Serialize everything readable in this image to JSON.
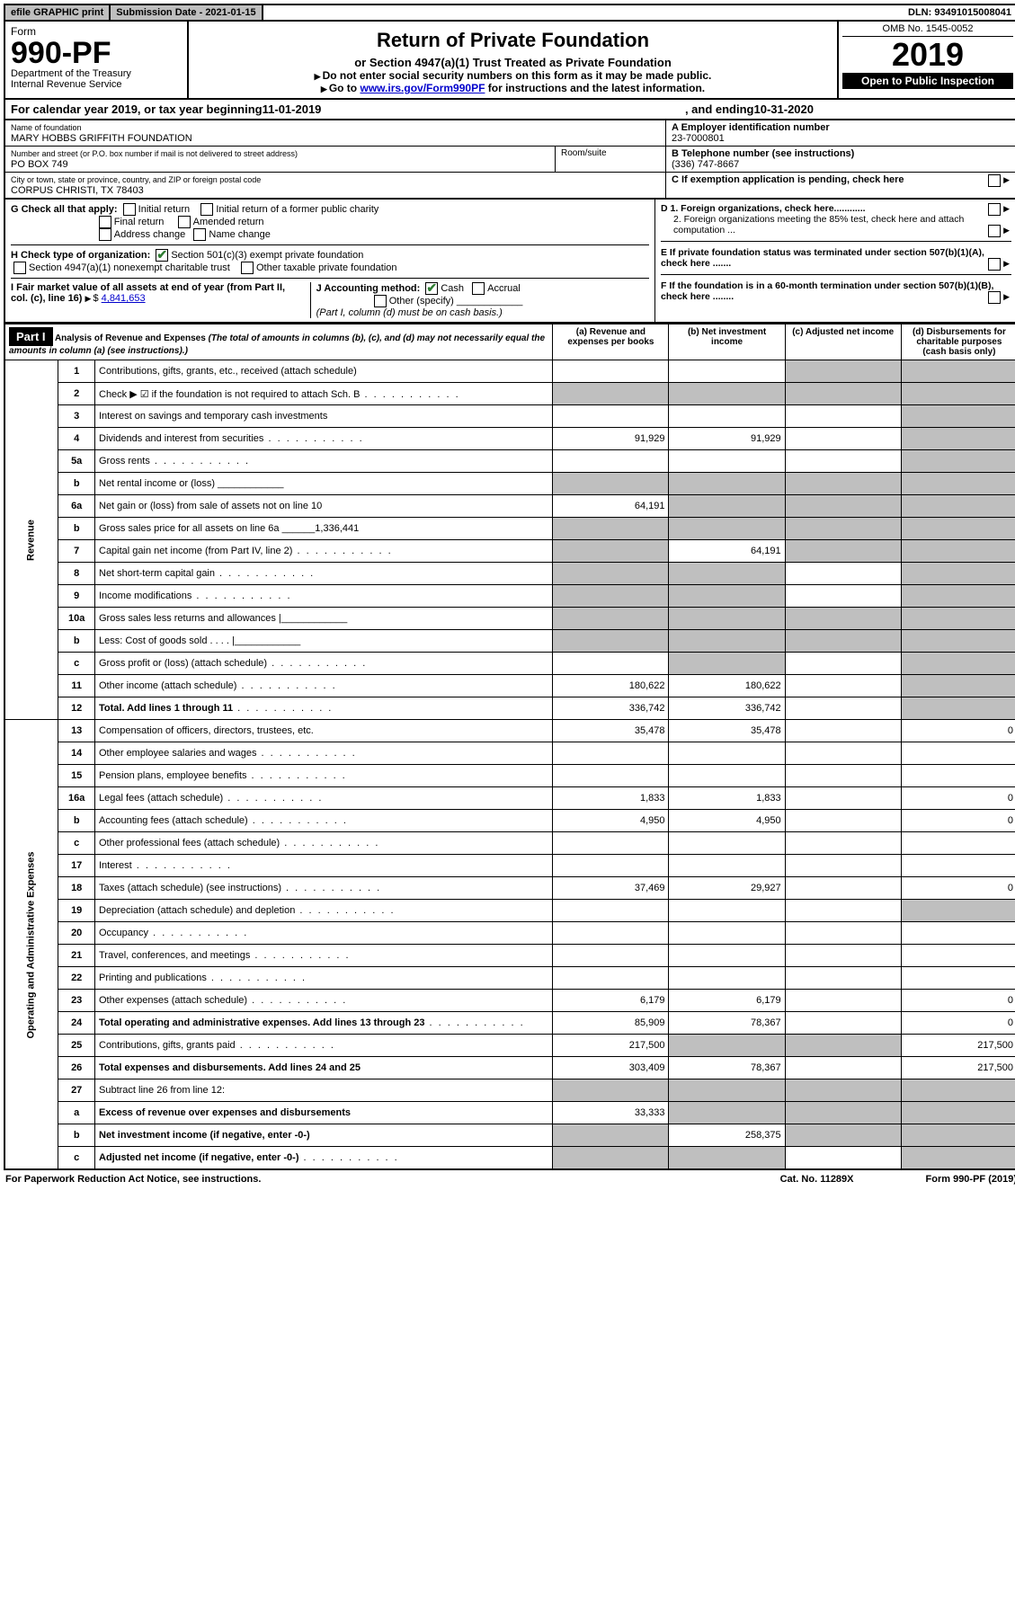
{
  "topbar": {
    "efile": "efile GRAPHIC print",
    "submission": "Submission Date - 2021-01-15",
    "dln": "DLN: 93491015008041"
  },
  "header": {
    "form_label": "Form",
    "form_number": "990-PF",
    "department": "Department of the Treasury",
    "irs": "Internal Revenue Service",
    "title": "Return of Private Foundation",
    "subtitle": "or Section 4947(a)(1) Trust Treated as Private Foundation",
    "instr1": "Do not enter social security numbers on this form as it may be made public.",
    "instr2_prefix": "Go to ",
    "instr2_link": "www.irs.gov/Form990PF",
    "instr2_suffix": " for instructions and the latest information.",
    "omb": "OMB No. 1545-0052",
    "year": "2019",
    "inspection": "Open to Public Inspection"
  },
  "calendar": {
    "prefix": "For calendar year 2019, or tax year beginning ",
    "begin": "11-01-2019",
    "mid": ", and ending ",
    "end": "10-31-2020"
  },
  "id": {
    "name_label": "Name of foundation",
    "name": "MARY HOBBS GRIFFITH FOUNDATION",
    "addr_label": "Number and street (or P.O. box number if mail is not delivered to street address)",
    "addr": "PO BOX 749",
    "room_label": "Room/suite",
    "city_label": "City or town, state or province, country, and ZIP or foreign postal code",
    "city": "CORPUS CHRISTI, TX  78403",
    "a_label": "A Employer identification number",
    "ein": "23-7000801",
    "b_label": "B Telephone number (see instructions)",
    "phone": "(336) 747-8667",
    "c_label": "C  If exemption application is pending, check here"
  },
  "checks": {
    "g_label": "G Check all that apply:",
    "g1": "Initial return",
    "g2": "Initial return of a former public charity",
    "g3": "Final return",
    "g4": "Amended return",
    "g5": "Address change",
    "g6": "Name change",
    "h_label": "H Check type of organization:",
    "h1": "Section 501(c)(3) exempt private foundation",
    "h2": "Section 4947(a)(1) nonexempt charitable trust",
    "h3": "Other taxable private foundation",
    "i_label": "I Fair market value of all assets at end of year (from Part II, col. (c), line 16)",
    "i_value": "4,841,653",
    "j_label": "J Accounting method:",
    "j1": "Cash",
    "j2": "Accrual",
    "j3": "Other (specify)",
    "j_note": "(Part I, column (d) must be on cash basis.)",
    "d1": "D 1. Foreign organizations, check here............",
    "d2": "2. Foreign organizations meeting the 85% test, check here and attach computation ...",
    "e": "E  If private foundation status was terminated under section 507(b)(1)(A), check here .......",
    "f": "F  If the foundation is in a 60-month termination under section 507(b)(1)(B), check here ........"
  },
  "part1": {
    "label": "Part I",
    "title": "Analysis of Revenue and Expenses",
    "title_note": "(The total of amounts in columns (b), (c), and (d) may not necessarily equal the amounts in column (a) (see instructions).)",
    "col_a": "(a)    Revenue and expenses per books",
    "col_b": "(b)   Net investment income",
    "col_c": "(c)   Adjusted net income",
    "col_d": "(d)   Disbursements for charitable purposes (cash basis only)",
    "rev_label": "Revenue",
    "exp_label": "Operating and Administrative Expenses"
  },
  "rows": [
    {
      "n": "1",
      "d": "Contributions, gifts, grants, etc., received (attach schedule)",
      "a": "",
      "b": "",
      "c": "s",
      "dd": "s"
    },
    {
      "n": "2",
      "d": "Check ▶ ☑ if the foundation is not required to attach Sch. B",
      "a": "s",
      "b": "s",
      "c": "s",
      "dd": "s",
      "dots": true
    },
    {
      "n": "3",
      "d": "Interest on savings and temporary cash investments",
      "a": "",
      "b": "",
      "c": "",
      "dd": "s"
    },
    {
      "n": "4",
      "d": "Dividends and interest from securities",
      "a": "91,929",
      "b": "91,929",
      "c": "",
      "dd": "s",
      "dots": true
    },
    {
      "n": "5a",
      "d": "Gross rents",
      "a": "",
      "b": "",
      "c": "",
      "dd": "s",
      "dots": true
    },
    {
      "n": "b",
      "d": "Net rental income or (loss)    ____________",
      "a": "s",
      "b": "s",
      "c": "s",
      "dd": "s"
    },
    {
      "n": "6a",
      "d": "Net gain or (loss) from sale of assets not on line 10",
      "a": "64,191",
      "b": "s",
      "c": "s",
      "dd": "s"
    },
    {
      "n": "b",
      "d": "Gross sales price for all assets on line 6a ______1,336,441",
      "a": "s",
      "b": "s",
      "c": "s",
      "dd": "s"
    },
    {
      "n": "7",
      "d": "Capital gain net income (from Part IV, line 2)",
      "a": "s",
      "b": "64,191",
      "c": "s",
      "dd": "s",
      "dots": true
    },
    {
      "n": "8",
      "d": "Net short-term capital gain",
      "a": "s",
      "b": "s",
      "c": "",
      "dd": "s",
      "dots": true
    },
    {
      "n": "9",
      "d": "Income modifications",
      "a": "s",
      "b": "s",
      "c": "",
      "dd": "s",
      "dots": true
    },
    {
      "n": "10a",
      "d": "Gross sales less returns and allowances  |____________",
      "a": "s",
      "b": "s",
      "c": "s",
      "dd": "s"
    },
    {
      "n": "b",
      "d": "Less: Cost of goods sold       . . . .  |____________",
      "a": "s",
      "b": "s",
      "c": "s",
      "dd": "s"
    },
    {
      "n": "c",
      "d": "Gross profit or (loss) (attach schedule)",
      "a": "",
      "b": "s",
      "c": "",
      "dd": "s",
      "dots": true
    },
    {
      "n": "11",
      "d": "Other income (attach schedule)",
      "a": "180,622",
      "b": "180,622",
      "c": "",
      "dd": "s",
      "dots": true
    },
    {
      "n": "12",
      "d": "Total. Add lines 1 through 11",
      "a": "336,742",
      "b": "336,742",
      "c": "",
      "dd": "s",
      "bold": true,
      "dots": true
    },
    {
      "n": "13",
      "d": "Compensation of officers, directors, trustees, etc.",
      "a": "35,478",
      "b": "35,478",
      "c": "",
      "dd": "0"
    },
    {
      "n": "14",
      "d": "Other employee salaries and wages",
      "a": "",
      "b": "",
      "c": "",
      "dd": "",
      "dots": true
    },
    {
      "n": "15",
      "d": "Pension plans, employee benefits",
      "a": "",
      "b": "",
      "c": "",
      "dd": "",
      "dots": true
    },
    {
      "n": "16a",
      "d": "Legal fees (attach schedule)",
      "a": "1,833",
      "b": "1,833",
      "c": "",
      "dd": "0",
      "dots": true
    },
    {
      "n": "b",
      "d": "Accounting fees (attach schedule)",
      "a": "4,950",
      "b": "4,950",
      "c": "",
      "dd": "0",
      "dots": true
    },
    {
      "n": "c",
      "d": "Other professional fees (attach schedule)",
      "a": "",
      "b": "",
      "c": "",
      "dd": "",
      "dots": true
    },
    {
      "n": "17",
      "d": "Interest",
      "a": "",
      "b": "",
      "c": "",
      "dd": "",
      "dots": true
    },
    {
      "n": "18",
      "d": "Taxes (attach schedule) (see instructions)",
      "a": "37,469",
      "b": "29,927",
      "c": "",
      "dd": "0",
      "dots": true
    },
    {
      "n": "19",
      "d": "Depreciation (attach schedule) and depletion",
      "a": "",
      "b": "",
      "c": "",
      "dd": "s",
      "dots": true
    },
    {
      "n": "20",
      "d": "Occupancy",
      "a": "",
      "b": "",
      "c": "",
      "dd": "",
      "dots": true
    },
    {
      "n": "21",
      "d": "Travel, conferences, and meetings",
      "a": "",
      "b": "",
      "c": "",
      "dd": "",
      "dots": true
    },
    {
      "n": "22",
      "d": "Printing and publications",
      "a": "",
      "b": "",
      "c": "",
      "dd": "",
      "dots": true
    },
    {
      "n": "23",
      "d": "Other expenses (attach schedule)",
      "a": "6,179",
      "b": "6,179",
      "c": "",
      "dd": "0",
      "dots": true
    },
    {
      "n": "24",
      "d": "Total operating and administrative expenses. Add lines 13 through 23",
      "a": "85,909",
      "b": "78,367",
      "c": "",
      "dd": "0",
      "bold": true,
      "dots": true
    },
    {
      "n": "25",
      "d": "Contributions, gifts, grants paid",
      "a": "217,500",
      "b": "s",
      "c": "s",
      "dd": "217,500",
      "dots": true
    },
    {
      "n": "26",
      "d": "Total expenses and disbursements. Add lines 24 and 25",
      "a": "303,409",
      "b": "78,367",
      "c": "",
      "dd": "217,500",
      "bold": true
    },
    {
      "n": "27",
      "d": "Subtract line 26 from line 12:",
      "a": "s",
      "b": "s",
      "c": "s",
      "dd": "s"
    },
    {
      "n": "a",
      "d": "Excess of revenue over expenses and disbursements",
      "a": "33,333",
      "b": "s",
      "c": "s",
      "dd": "s",
      "bold": true
    },
    {
      "n": "b",
      "d": "Net investment income (if negative, enter -0-)",
      "a": "s",
      "b": "258,375",
      "c": "s",
      "dd": "s",
      "bold": true
    },
    {
      "n": "c",
      "d": "Adjusted net income (if negative, enter -0-)",
      "a": "s",
      "b": "s",
      "c": "",
      "dd": "s",
      "bold": true,
      "dots": true
    }
  ],
  "footer": {
    "left": "For Paperwork Reduction Act Notice, see instructions.",
    "mid": "Cat. No. 11289X",
    "right": "Form 990-PF (2019)"
  }
}
